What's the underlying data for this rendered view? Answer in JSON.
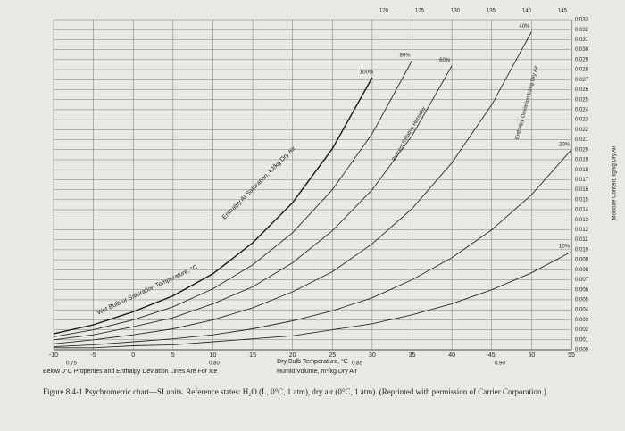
{
  "chart_data": {
    "type": "psychrometric",
    "caption": "Figure 8.4-1 Psychrometric chart—SI units. Reference states: H₂O (L, 0°C, 1 atm), dry air (0°C, 1 atm). (Reprinted with permission of Carrier Corporation.)",
    "xlabel": "Dry Bulb Temperature, °C",
    "ylabel": "Moisture Content, kg/kg Dry Air",
    "enthalpy_label": "Enthalpy At Saturation, kJ/kg Dry Air",
    "wetbulb_label": "Wet Bulb or Saturation Temperature, °C",
    "rh_label": "Percent Relative Humidity",
    "deviation_label": "Enthalpy Deviation kJ/kg Dry Air",
    "ice_note": "Below 0°C Properties and Enthalpy Deviation Lines Are For Ice",
    "volume_label": "Humid Volume, m³/kg Dry Air",
    "volume_labels": [
      "0.75",
      "0.80",
      "0.85",
      "0.90"
    ],
    "top_labels": [
      "120",
      "125",
      "130",
      "135",
      "140",
      "145"
    ],
    "x": [
      -10,
      -5,
      0,
      5,
      10,
      15,
      20,
      25,
      30,
      35,
      40,
      45,
      50,
      55
    ],
    "series": [
      {
        "name": "100%",
        "color": "#1a1a1a",
        "values": [
          0.0016,
          0.0025,
          0.0038,
          0.0054,
          0.0076,
          0.0107,
          0.0147,
          0.0201,
          0.0272,
          null,
          null,
          null,
          null,
          null
        ]
      },
      {
        "name": "80%",
        "color": "#2a2a2a",
        "values": [
          0.0013,
          0.002,
          0.003,
          0.0043,
          0.0061,
          0.0085,
          0.0117,
          0.016,
          0.0216,
          0.0289,
          null,
          null,
          null,
          null
        ]
      },
      {
        "name": "60%",
        "color": "#2a2a2a",
        "values": [
          0.001,
          0.0015,
          0.0023,
          0.0032,
          0.0046,
          0.0063,
          0.0087,
          0.0119,
          0.016,
          0.0214,
          0.0284,
          null,
          null,
          null
        ]
      },
      {
        "name": "40%",
        "color": "#2a2a2a",
        "values": [
          0.0006,
          0.001,
          0.0015,
          0.0021,
          0.003,
          0.0042,
          0.0058,
          0.0078,
          0.0106,
          0.0141,
          0.0187,
          0.0245,
          0.0318,
          null
        ]
      },
      {
        "name": "20%",
        "color": "#2a2a2a",
        "values": [
          0.0003,
          0.0005,
          0.0008,
          0.0011,
          0.0015,
          0.0021,
          0.0029,
          0.0039,
          0.0052,
          0.007,
          0.0092,
          0.012,
          0.0155,
          0.02
        ]
      },
      {
        "name": "10%",
        "color": "#2a2a2a",
        "values": [
          0.0002,
          0.0002,
          0.0004,
          0.0005,
          0.0008,
          0.0011,
          0.0014,
          0.002,
          0.0026,
          0.0035,
          0.0046,
          0.006,
          0.0077,
          0.0098
        ]
      }
    ],
    "xlim": [
      -10,
      55
    ],
    "xticks": [
      -10,
      -5,
      0,
      5,
      10,
      15,
      20,
      25,
      30,
      35,
      40,
      45,
      50,
      55
    ],
    "ylim": [
      0,
      0.033
    ],
    "yticks": [
      {
        "value": 0,
        "label": "0.000"
      },
      {
        "value": 0.001,
        "label": "0.001"
      },
      {
        "value": 0.002,
        "label": "0.002"
      },
      {
        "value": 0.003,
        "label": "0.003"
      },
      {
        "value": 0.004,
        "label": "0.004"
      },
      {
        "value": 0.005,
        "label": "0.005"
      },
      {
        "value": 0.006,
        "label": "0.006"
      },
      {
        "value": 0.007,
        "label": "0.007"
      },
      {
        "value": 0.008,
        "label": "0.008"
      },
      {
        "value": 0.009,
        "label": "0.009"
      },
      {
        "value": 0.01,
        "label": "0.010"
      },
      {
        "value": 0.011,
        "label": "0.011"
      },
      {
        "value": 0.012,
        "label": "0.012"
      },
      {
        "value": 0.013,
        "label": "0.013"
      },
      {
        "value": 0.014,
        "label": "0.014"
      },
      {
        "value": 0.015,
        "label": "0.015"
      },
      {
        "value": 0.016,
        "label": "0.016"
      },
      {
        "value": 0.017,
        "label": "0.017"
      },
      {
        "value": 0.018,
        "label": "0.018"
      },
      {
        "value": 0.019,
        "label": "0.019"
      },
      {
        "value": 0.02,
        "label": "0.020"
      },
      {
        "value": 0.021,
        "label": "0.021"
      },
      {
        "value": 0.022,
        "label": "0.022"
      },
      {
        "value": 0.023,
        "label": "0.023"
      },
      {
        "value": 0.024,
        "label": "0.024"
      },
      {
        "value": 0.025,
        "label": "0.025"
      },
      {
        "value": 0.026,
        "label": "0.026"
      },
      {
        "value": 0.027,
        "label": "0.027"
      },
      {
        "value": 0.028,
        "label": "0.028"
      },
      {
        "value": 0.029,
        "label": "0.029"
      },
      {
        "value": 0.03,
        "label": "0.030"
      },
      {
        "value": 0.031,
        "label": "0.031"
      },
      {
        "value": 0.032,
        "label": "0.032"
      },
      {
        "value": 0.033,
        "label": "0.033"
      }
    ],
    "grid": true
  }
}
